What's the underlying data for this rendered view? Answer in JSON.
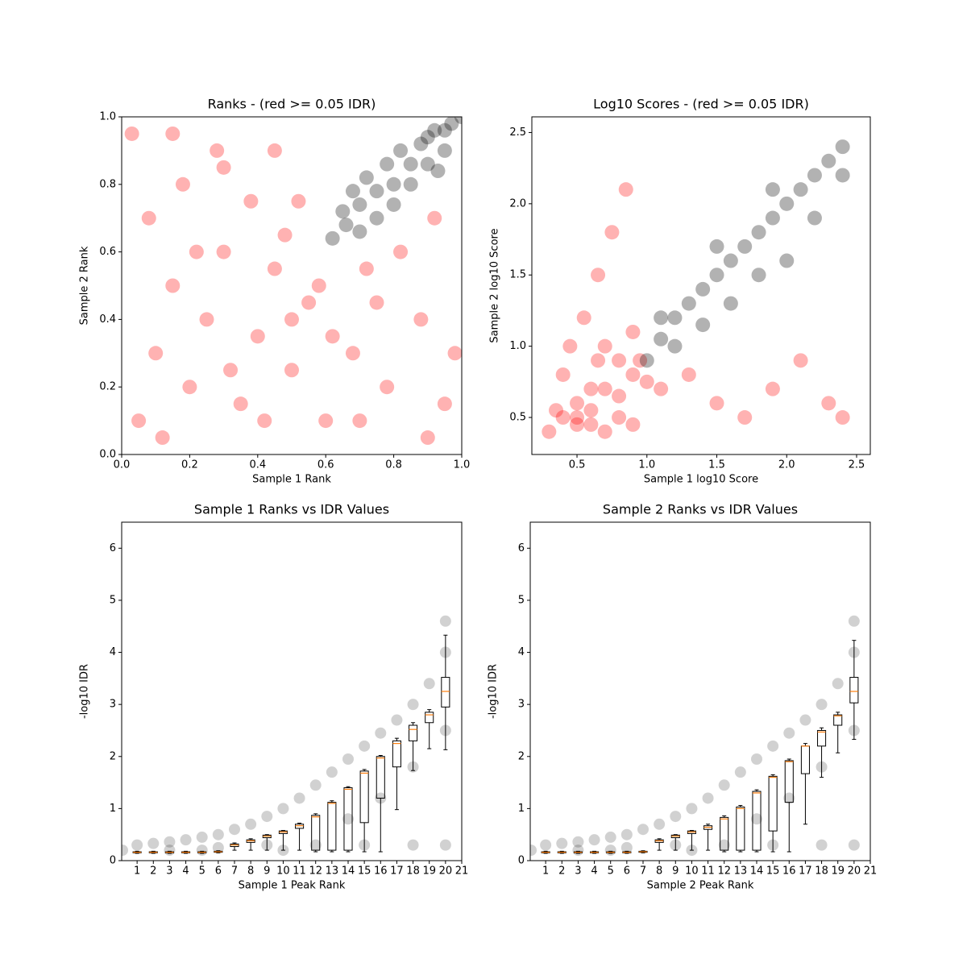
{
  "chart_data": [
    {
      "type": "scatter",
      "title": "Ranks - (red >= 0.05 IDR)",
      "x_label": "Sample 1 Rank",
      "y_label": "Sample 2 Rank",
      "xlim": [
        0,
        1
      ],
      "ylim": [
        0,
        1
      ],
      "xticks": [
        {
          "value": 0,
          "label": "0.0"
        },
        0.2,
        0.4,
        0.6,
        0.8,
        {
          "value": 1,
          "label": "1.0"
        }
      ],
      "yticks": [
        {
          "value": 0,
          "label": "0.0"
        },
        0.2,
        0.4,
        0.6,
        0.8,
        {
          "value": 1,
          "label": "1.0"
        }
      ],
      "series": [
        {
          "color": "#ff0000",
          "x": [
            0.05,
            0.1,
            0.15,
            0.2,
            0.25,
            0.3,
            0.35,
            0.4,
            0.45,
            0.5,
            0.55,
            0.6,
            0.08,
            0.18,
            0.28,
            0.38,
            0.48,
            0.58,
            0.68,
            0.78,
            0.88,
            0.95,
            0.12,
            0.22,
            0.32,
            0.42,
            0.52,
            0.62,
            0.72,
            0.82,
            0.92,
            0.03,
            0.3,
            0.5,
            0.7,
            0.9,
            0.15,
            0.45,
            0.75,
            0.98
          ],
          "values": [
            0.1,
            0.3,
            0.5,
            0.2,
            0.4,
            0.6,
            0.15,
            0.35,
            0.55,
            0.25,
            0.45,
            0.1,
            0.7,
            0.8,
            0.9,
            0.75,
            0.65,
            0.5,
            0.3,
            0.2,
            0.4,
            0.15,
            0.05,
            0.6,
            0.25,
            0.1,
            0.75,
            0.35,
            0.55,
            0.6,
            0.7,
            0.95,
            0.85,
            0.4,
            0.1,
            0.05,
            0.95,
            0.9,
            0.45,
            0.3
          ]
        },
        {
          "color": "#000000",
          "x": [
            0.62,
            0.65,
            0.68,
            0.7,
            0.72,
            0.75,
            0.78,
            0.8,
            0.82,
            0.85,
            0.88,
            0.9,
            0.92,
            0.95,
            0.97,
            1.0,
            0.7,
            0.75,
            0.85,
            0.9,
            0.8,
            0.95,
            0.66,
            0.93
          ],
          "values": [
            0.64,
            0.72,
            0.78,
            0.66,
            0.82,
            0.7,
            0.86,
            0.74,
            0.9,
            0.8,
            0.92,
            0.86,
            0.96,
            0.9,
            0.98,
            1.0,
            0.74,
            0.78,
            0.86,
            0.94,
            0.8,
            0.96,
            0.68,
            0.84
          ]
        }
      ]
    },
    {
      "type": "scatter",
      "title": "Log10 Scores - (red >= 0.05 IDR)",
      "x_label": "Sample 1 log10 Score",
      "y_label": "Sample 2 log10 Score",
      "xlim": [
        0.177,
        2.598
      ],
      "ylim": [
        0.24,
        2.61
      ],
      "xticks": [
        0.5,
        {
          "value": 1,
          "label": "1.0"
        },
        1.5,
        {
          "value": 2,
          "label": "2.0"
        },
        2.5
      ],
      "yticks": [
        0.5,
        {
          "value": 1,
          "label": "1.0"
        },
        1.5,
        {
          "value": 2,
          "label": "2.0"
        },
        2.5
      ],
      "series": [
        {
          "color": "#ff0000",
          "x": [
            0.3,
            0.4,
            0.5,
            0.6,
            0.7,
            0.8,
            0.9,
            0.45,
            0.55,
            0.65,
            0.75,
            0.85,
            0.95,
            1.1,
            1.3,
            1.5,
            1.7,
            1.9,
            2.1,
            2.3,
            0.5,
            0.6,
            0.7,
            0.8,
            0.9,
            0.4,
            0.5,
            0.6,
            0.7,
            0.8,
            0.9,
            1.0,
            2.4,
            0.35,
            0.65
          ],
          "values": [
            0.4,
            0.5,
            0.6,
            0.45,
            0.7,
            0.5,
            0.8,
            1.0,
            1.2,
            1.5,
            1.8,
            2.1,
            0.9,
            0.7,
            0.8,
            0.6,
            0.5,
            0.7,
            0.9,
            0.6,
            0.45,
            0.55,
            0.4,
            0.65,
            0.45,
            0.8,
            0.5,
            0.7,
            1.0,
            0.9,
            1.1,
            0.75,
            0.5,
            0.55,
            0.9
          ]
        },
        {
          "color": "#000000",
          "x": [
            1.0,
            1.1,
            1.2,
            1.3,
            1.4,
            1.5,
            1.6,
            1.7,
            1.8,
            1.9,
            2.0,
            2.1,
            2.2,
            2.3,
            2.4,
            1.2,
            1.4,
            1.6,
            1.8,
            2.0,
            1.1,
            1.5,
            1.9,
            2.2,
            2.4
          ],
          "values": [
            0.9,
            1.05,
            1.2,
            1.3,
            1.4,
            1.5,
            1.6,
            1.7,
            1.8,
            1.9,
            2.0,
            2.1,
            2.2,
            2.3,
            2.4,
            1.0,
            1.15,
            1.3,
            1.5,
            1.6,
            1.2,
            1.7,
            2.1,
            1.9,
            2.2
          ]
        }
      ]
    },
    {
      "type": "box",
      "title": "Sample 1 Ranks vs IDR Values",
      "x_label": "Sample 1 Peak Rank",
      "y_label": "-log10 IDR",
      "xlim": [
        0.05,
        21
      ],
      "ylim": [
        0,
        6.5
      ],
      "xticks": [
        1,
        2,
        3,
        4,
        5,
        6,
        7,
        8,
        9,
        10,
        11,
        12,
        13,
        14,
        15,
        16,
        17,
        18,
        19,
        20,
        21
      ],
      "yticks": [
        0,
        1,
        2,
        3,
        4,
        5,
        6
      ],
      "series": [
        {
          "color": "#000000",
          "x": [
            0.1,
            1,
            2,
            3,
            4,
            5,
            6,
            7,
            8,
            9,
            10,
            11,
            12,
            13,
            14,
            15,
            16,
            17,
            18,
            19,
            20,
            20,
            3,
            6,
            9,
            12,
            15,
            18,
            20,
            14,
            16,
            18,
            20,
            5,
            10
          ],
          "values": [
            0.2,
            0.3,
            0.33,
            0.36,
            0.4,
            0.45,
            0.5,
            0.6,
            0.7,
            0.85,
            1.0,
            1.2,
            1.45,
            1.7,
            1.95,
            2.2,
            2.45,
            2.7,
            3.0,
            3.4,
            4.0,
            4.6,
            0.2,
            0.25,
            0.3,
            0.3,
            0.3,
            0.3,
            0.3,
            0.8,
            1.2,
            1.8,
            2.5,
            0.2,
            0.2
          ]
        }
      ],
      "boxes": {
        "positions": [
          1,
          2,
          3,
          4,
          5,
          6,
          7,
          8,
          9,
          10,
          11,
          12,
          13,
          14,
          15,
          16,
          17,
          18,
          19,
          20
        ],
        "median_color": "#ff7f0e",
        "median": [
          0.16,
          0.16,
          0.16,
          0.16,
          0.16,
          0.17,
          0.3,
          0.38,
          0.47,
          0.55,
          0.67,
          0.84,
          1.1,
          1.37,
          1.68,
          1.97,
          2.25,
          2.52,
          2.8,
          3.25
        ],
        "q1": [
          0.15,
          0.15,
          0.15,
          0.15,
          0.15,
          0.16,
          0.27,
          0.35,
          0.44,
          0.52,
          0.62,
          0.2,
          0.2,
          0.2,
          0.73,
          1.2,
          1.8,
          2.3,
          2.65,
          2.95
        ],
        "q3": [
          0.17,
          0.17,
          0.17,
          0.17,
          0.17,
          0.18,
          0.32,
          0.4,
          0.49,
          0.57,
          0.7,
          0.87,
          1.12,
          1.4,
          1.72,
          2.0,
          2.3,
          2.6,
          2.85,
          3.52
        ],
        "whislo": [
          0.14,
          0.14,
          0.14,
          0.14,
          0.14,
          0.15,
          0.2,
          0.2,
          0.2,
          0.2,
          0.2,
          0.17,
          0.17,
          0.17,
          0.17,
          0.17,
          0.98,
          1.73,
          2.15,
          2.13
        ],
        "whishi": [
          0.18,
          0.18,
          0.18,
          0.18,
          0.18,
          0.19,
          0.34,
          0.42,
          0.5,
          0.58,
          0.72,
          0.9,
          1.15,
          1.42,
          1.75,
          2.02,
          2.35,
          2.65,
          2.9,
          4.33
        ]
      }
    },
    {
      "type": "box",
      "title": "Sample 2 Ranks vs IDR Values",
      "x_label": "Sample 2 Peak Rank",
      "y_label": "-log10 IDR",
      "xlim": [
        0.05,
        21
      ],
      "ylim": [
        0,
        6.5
      ],
      "xticks": [
        1,
        2,
        3,
        4,
        5,
        6,
        7,
        8,
        9,
        10,
        11,
        12,
        13,
        14,
        15,
        16,
        17,
        18,
        19,
        20,
        21
      ],
      "yticks": [
        0,
        1,
        2,
        3,
        4,
        5,
        6
      ],
      "series": [
        {
          "color": "#000000",
          "x": [
            0.1,
            1,
            2,
            3,
            4,
            5,
            6,
            7,
            8,
            9,
            10,
            11,
            12,
            13,
            14,
            15,
            16,
            17,
            18,
            19,
            20,
            20,
            3,
            6,
            9,
            12,
            15,
            18,
            20,
            14,
            16,
            18,
            20,
            5,
            10
          ],
          "values": [
            0.2,
            0.3,
            0.33,
            0.36,
            0.4,
            0.45,
            0.5,
            0.6,
            0.7,
            0.85,
            1.0,
            1.2,
            1.45,
            1.7,
            1.95,
            2.2,
            2.45,
            2.7,
            3.0,
            3.4,
            4.0,
            4.6,
            0.2,
            0.25,
            0.3,
            0.3,
            0.3,
            0.3,
            0.3,
            0.8,
            1.2,
            1.8,
            2.5,
            0.2,
            0.2
          ]
        }
      ],
      "boxes": {
        "positions": [
          1,
          2,
          3,
          4,
          5,
          6,
          7,
          8,
          9,
          10,
          11,
          12,
          13,
          14,
          15,
          16,
          17,
          18,
          19,
          20
        ],
        "median_color": "#ff7f0e",
        "median": [
          0.16,
          0.16,
          0.16,
          0.16,
          0.16,
          0.16,
          0.17,
          0.38,
          0.47,
          0.55,
          0.64,
          0.8,
          1.0,
          1.3,
          1.6,
          1.9,
          2.2,
          2.47,
          2.78,
          3.25
        ],
        "q1": [
          0.15,
          0.15,
          0.15,
          0.15,
          0.15,
          0.15,
          0.16,
          0.35,
          0.44,
          0.52,
          0.6,
          0.2,
          0.2,
          0.2,
          0.57,
          1.12,
          1.67,
          2.2,
          2.6,
          3.03
        ],
        "q3": [
          0.17,
          0.17,
          0.17,
          0.17,
          0.17,
          0.17,
          0.18,
          0.4,
          0.49,
          0.57,
          0.67,
          0.83,
          1.03,
          1.33,
          1.62,
          1.92,
          2.2,
          2.5,
          2.8,
          3.52
        ],
        "whislo": [
          0.14,
          0.14,
          0.14,
          0.14,
          0.14,
          0.14,
          0.15,
          0.2,
          0.2,
          0.2,
          0.2,
          0.17,
          0.17,
          0.17,
          0.17,
          0.17,
          0.7,
          1.6,
          2.07,
          2.33
        ],
        "whishi": [
          0.18,
          0.18,
          0.18,
          0.18,
          0.18,
          0.18,
          0.19,
          0.42,
          0.5,
          0.58,
          0.7,
          0.86,
          1.06,
          1.36,
          1.65,
          1.95,
          2.25,
          2.55,
          2.85,
          4.23
        ]
      }
    }
  ]
}
